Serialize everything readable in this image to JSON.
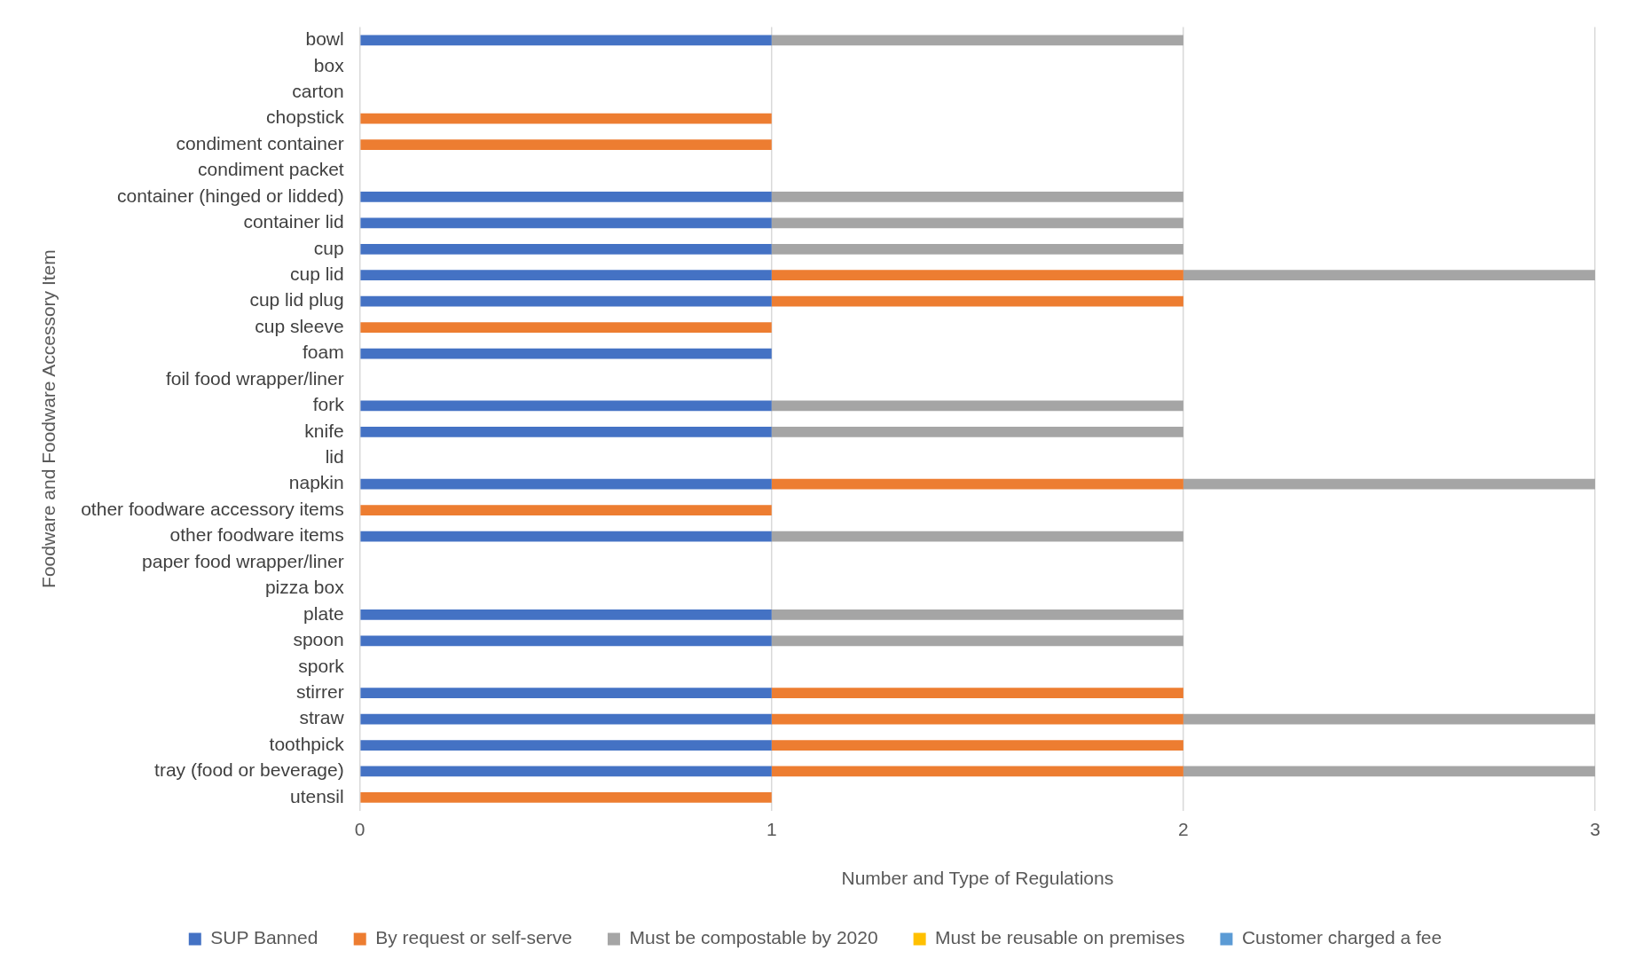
{
  "chart_data": {
    "type": "bar",
    "orientation": "horizontal",
    "stacked": true,
    "xlabel": "Number and Type of Regulations",
    "ylabel": "Foodware and Foodware Accessory Item",
    "categories": [
      "bowl",
      "box",
      "carton",
      "chopstick",
      "condiment container",
      "condiment packet",
      "container (hinged or lidded)",
      "container lid",
      "cup",
      "cup lid",
      "cup lid plug",
      "cup sleeve",
      "foam",
      "foil food wrapper/liner",
      "fork",
      "knife",
      "lid",
      "napkin",
      "other foodware accessory items",
      "other foodware items",
      "paper food wrapper/liner",
      "pizza box",
      "plate",
      "spoon",
      "spork",
      "stirrer",
      "straw",
      "toothpick",
      "tray (food or beverage)",
      "utensil"
    ],
    "series": [
      {
        "name": "SUP Banned",
        "color": "#4472c4",
        "values": [
          1,
          0,
          0,
          0,
          0,
          0,
          1,
          1,
          1,
          1,
          1,
          0,
          1,
          0,
          1,
          1,
          0,
          1,
          0,
          1,
          0,
          0,
          1,
          1,
          0,
          1,
          1,
          1,
          1,
          0
        ]
      },
      {
        "name": "By request or self-serve",
        "color": "#ed7d31",
        "values": [
          0,
          0,
          0,
          1,
          1,
          0,
          0,
          0,
          0,
          1,
          1,
          1,
          0,
          0,
          0,
          0,
          0,
          1,
          1,
          0,
          0,
          0,
          0,
          0,
          0,
          1,
          1,
          1,
          1,
          1
        ]
      },
      {
        "name": "Must be compostable by 2020",
        "color": "#a5a5a5",
        "values": [
          1,
          0,
          0,
          0,
          0,
          0,
          1,
          1,
          1,
          1,
          0,
          0,
          0,
          0,
          1,
          1,
          0,
          1,
          0,
          1,
          0,
          0,
          1,
          1,
          0,
          0,
          1,
          0,
          1,
          0
        ]
      },
      {
        "name": "Must be reusable on premises",
        "color": "#ffc000",
        "values": [
          0,
          0,
          0,
          0,
          0,
          0,
          0,
          0,
          0,
          0,
          0,
          0,
          0,
          0,
          0,
          0,
          0,
          0,
          0,
          0,
          0,
          0,
          0,
          0,
          0,
          0,
          0,
          0,
          0,
          0
        ]
      },
      {
        "name": "Customer charged a fee",
        "color": "#5b9bd5",
        "values": [
          0,
          0,
          0,
          0,
          0,
          0,
          0,
          0,
          0,
          0,
          0,
          0,
          0,
          0,
          0,
          0,
          0,
          0,
          0,
          0,
          0,
          0,
          0,
          0,
          0,
          0,
          0,
          0,
          0,
          0
        ]
      }
    ],
    "xlim": [
      0,
      3
    ],
    "xticks": [
      0,
      1,
      2,
      3
    ],
    "grid": "x",
    "legend": "bottom"
  }
}
